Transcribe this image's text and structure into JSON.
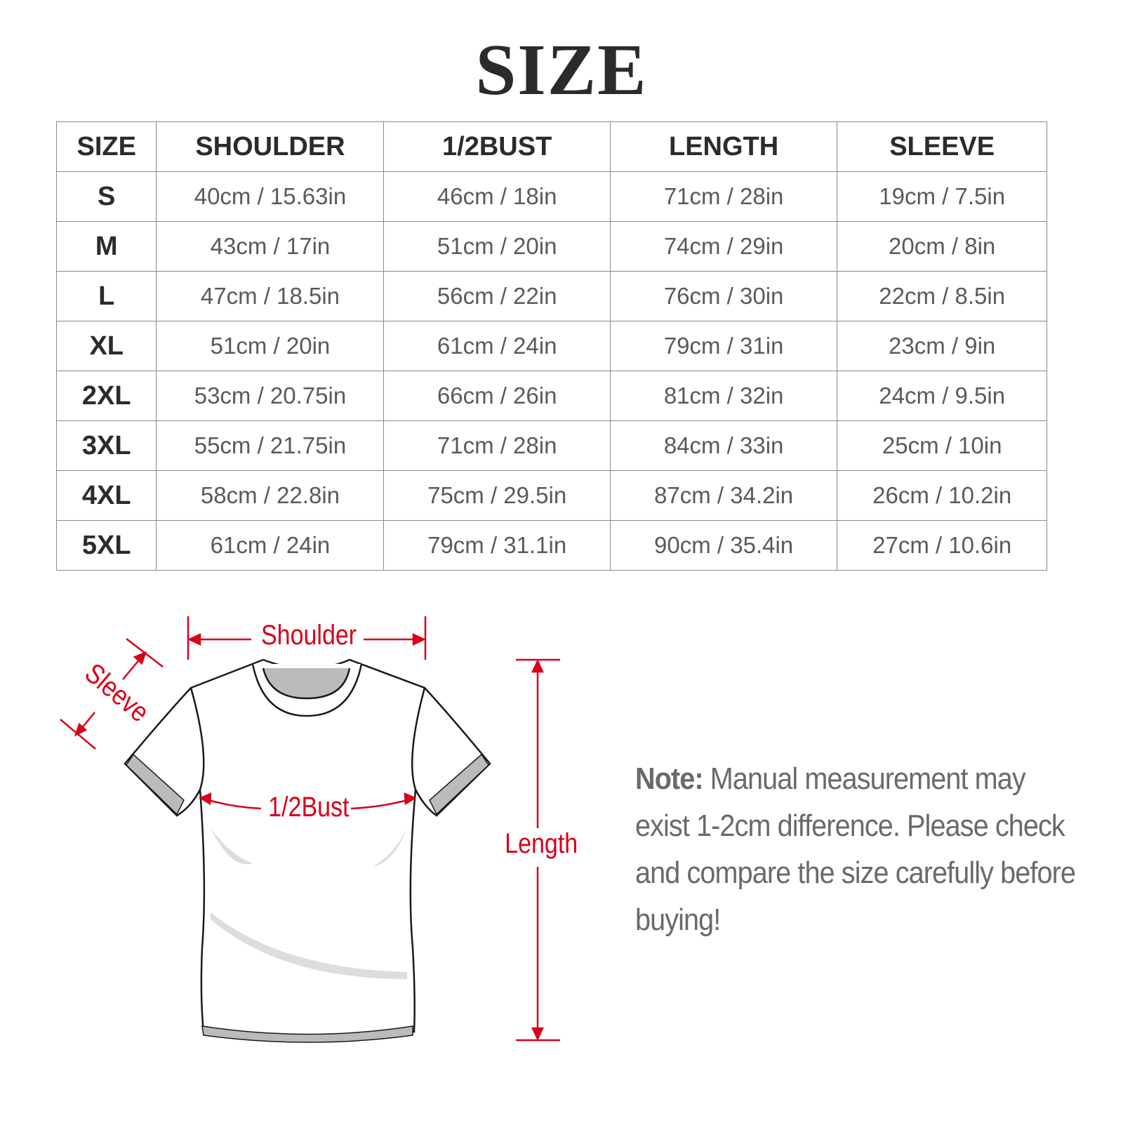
{
  "title": "SIZE",
  "table": {
    "headers": [
      "SIZE",
      "SHOULDER",
      "1/2BUST",
      "LENGTH",
      "SLEEVE"
    ],
    "rows": [
      [
        "S",
        "40cm / 15.63in",
        "46cm / 18in",
        "71cm / 28in",
        "19cm / 7.5in"
      ],
      [
        "M",
        "43cm / 17in",
        "51cm / 20in",
        "74cm / 29in",
        "20cm / 8in"
      ],
      [
        "L",
        "47cm / 18.5in",
        "56cm / 22in",
        "76cm / 30in",
        "22cm / 8.5in"
      ],
      [
        "XL",
        "51cm / 20in",
        "61cm / 24in",
        "79cm / 31in",
        "23cm / 9in"
      ],
      [
        "2XL",
        "53cm / 20.75in",
        "66cm / 26in",
        "81cm / 32in",
        "24cm / 9.5in"
      ],
      [
        "3XL",
        "55cm / 21.75in",
        "71cm / 28in",
        "84cm / 33in",
        "25cm / 10in"
      ],
      [
        "4XL",
        "58cm / 22.8in",
        "75cm / 29.5in",
        "87cm / 34.2in",
        "26cm / 10.2in"
      ],
      [
        "5XL",
        "61cm / 24in",
        "79cm / 31.1in",
        "90cm / 35.4in",
        "27cm / 10.6in"
      ]
    ]
  },
  "diagram": {
    "shoulder": "Shoulder",
    "sleeve": "Sleeve",
    "bust": "1/2Bust",
    "length": "Length",
    "accent_color": "#d8001a"
  },
  "note": {
    "label": "Note:",
    "text": " Manual measurement may exist 1-2cm difference. Please check and compare the size carefully before buying!"
  }
}
